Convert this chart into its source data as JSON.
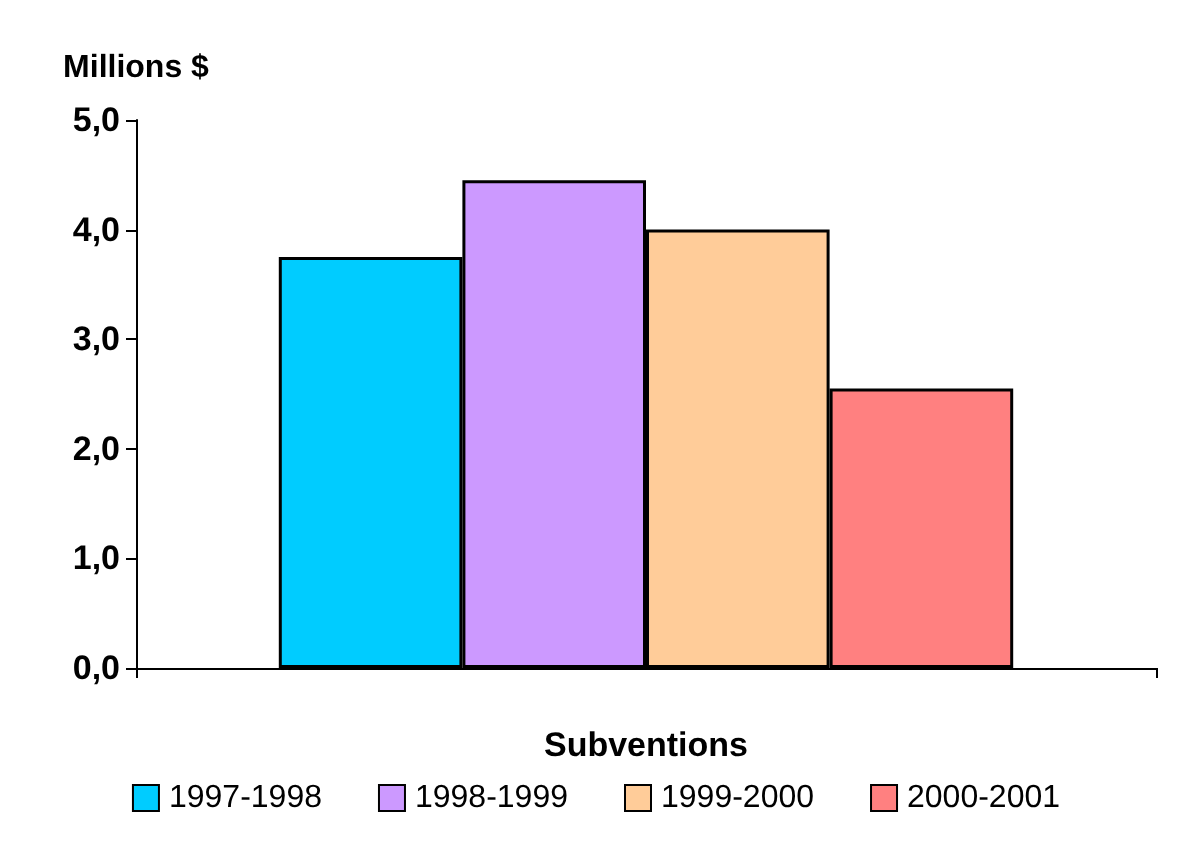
{
  "chart_data": {
    "type": "bar",
    "ylabel": "Millions $",
    "xlabel": "Subventions",
    "categories": [
      null
    ],
    "series": [
      {
        "name": "1997-1998",
        "color": "#00ccff",
        "values": [
          3.75
        ]
      },
      {
        "name": "1998-1999",
        "color": "#cc99ff",
        "values": [
          4.45
        ]
      },
      {
        "name": "1999-2000",
        "color": "#ffcc99",
        "values": [
          4.0
        ]
      },
      {
        "name": "2000-2001",
        "color": "#ff8080",
        "values": [
          2.55
        ]
      }
    ],
    "ylim": [
      0,
      5
    ],
    "yticks": [
      {
        "value": 0,
        "label": "0,0"
      },
      {
        "value": 1,
        "label": "1,0"
      },
      {
        "value": 2,
        "label": "2,0"
      },
      {
        "value": 3,
        "label": "3,0"
      },
      {
        "value": 4,
        "label": "4,0"
      },
      {
        "value": 5,
        "label": "5,0"
      }
    ],
    "grid": false,
    "legend": "bottom"
  }
}
